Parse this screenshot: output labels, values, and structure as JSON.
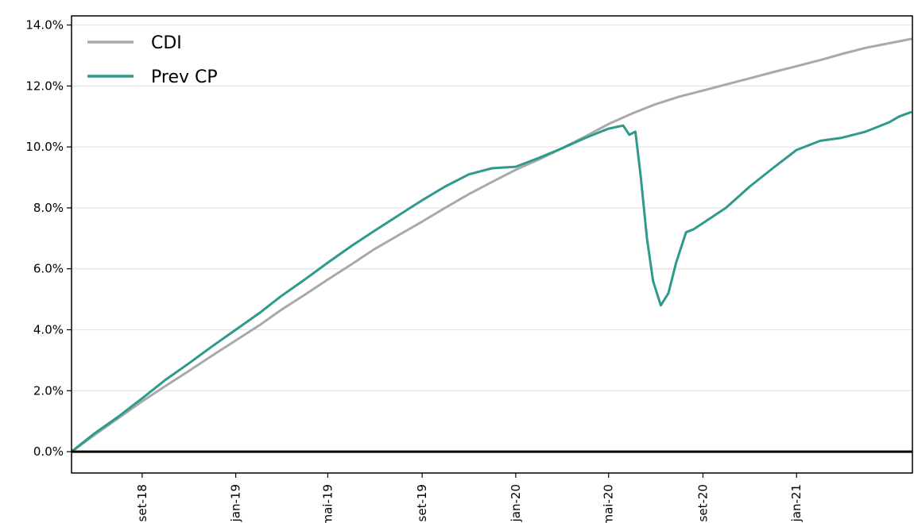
{
  "chart_data": {
    "type": "line",
    "title": "",
    "xlabel": "",
    "ylabel": "",
    "x_ticks": [
      "set-18",
      "jan-19",
      "mai-19",
      "set-19",
      "jan-20",
      "mai-20",
      "set-20",
      "jan-21"
    ],
    "y_ticks": [
      "0.0%",
      "2.0%",
      "4.0%",
      "6.0%",
      "8.0%",
      "10.0%",
      "12.0%",
      "14.0%"
    ],
    "xlim": [
      "2018-06-01",
      "2021-06-01"
    ],
    "ylim": [
      -0.007,
      0.143
    ],
    "grid": "horizontal",
    "legend": "top-left",
    "colors": {
      "CDI": "#a9a9a9",
      "Prev CP": "#2e9a8c",
      "zero_line": "#000000",
      "title": "#1f1f8a"
    },
    "series": [
      {
        "name": "CDI",
        "points": [
          [
            "2018-06-01",
            0.0
          ],
          [
            "2018-07-01",
            0.0055
          ],
          [
            "2018-08-01",
            0.011
          ],
          [
            "2018-09-01",
            0.0165
          ],
          [
            "2018-10-01",
            0.0215
          ],
          [
            "2018-11-01",
            0.0265
          ],
          [
            "2018-12-01",
            0.0315
          ],
          [
            "2019-01-01",
            0.0365
          ],
          [
            "2019-02-01",
            0.0415
          ],
          [
            "2019-03-01",
            0.0465
          ],
          [
            "2019-04-01",
            0.0515
          ],
          [
            "2019-05-01",
            0.0565
          ],
          [
            "2019-06-01",
            0.0615
          ],
          [
            "2019-07-01",
            0.0665
          ],
          [
            "2019-08-01",
            0.071
          ],
          [
            "2019-09-01",
            0.0755
          ],
          [
            "2019-10-01",
            0.08
          ],
          [
            "2019-11-01",
            0.0845
          ],
          [
            "2019-12-01",
            0.0885
          ],
          [
            "2020-01-01",
            0.0925
          ],
          [
            "2020-02-01",
            0.096
          ],
          [
            "2020-03-01",
            0.0995
          ],
          [
            "2020-04-01",
            0.1035
          ],
          [
            "2020-05-01",
            0.1075
          ],
          [
            "2020-06-01",
            0.111
          ],
          [
            "2020-07-01",
            0.114
          ],
          [
            "2020-08-01",
            0.1165
          ],
          [
            "2020-09-01",
            0.1185
          ],
          [
            "2020-10-01",
            0.1205
          ],
          [
            "2020-11-01",
            0.1225
          ],
          [
            "2020-12-01",
            0.1245
          ],
          [
            "2021-01-01",
            0.1265
          ],
          [
            "2021-02-01",
            0.1285
          ],
          [
            "2021-03-01",
            0.1305
          ],
          [
            "2021-04-01",
            0.1325
          ],
          [
            "2021-05-01",
            0.134
          ],
          [
            "2021-06-01",
            0.1355
          ]
        ]
      },
      {
        "name": "Prev CP",
        "points": [
          [
            "2018-06-01",
            0.0
          ],
          [
            "2018-07-01",
            0.006
          ],
          [
            "2018-08-01",
            0.0115
          ],
          [
            "2018-09-01",
            0.0175
          ],
          [
            "2018-10-01",
            0.0235
          ],
          [
            "2018-11-01",
            0.029
          ],
          [
            "2018-12-01",
            0.0345
          ],
          [
            "2019-01-01",
            0.04
          ],
          [
            "2019-02-01",
            0.0455
          ],
          [
            "2019-03-01",
            0.051
          ],
          [
            "2019-04-01",
            0.0565
          ],
          [
            "2019-05-01",
            0.062
          ],
          [
            "2019-06-01",
            0.0675
          ],
          [
            "2019-07-01",
            0.0725
          ],
          [
            "2019-08-01",
            0.0775
          ],
          [
            "2019-09-01",
            0.0825
          ],
          [
            "2019-10-01",
            0.087
          ],
          [
            "2019-11-01",
            0.091
          ],
          [
            "2019-12-01",
            0.093
          ],
          [
            "2020-01-01",
            0.0935
          ],
          [
            "2020-02-01",
            0.0965
          ],
          [
            "2020-03-01",
            0.0995
          ],
          [
            "2020-04-01",
            0.103
          ],
          [
            "2020-05-01",
            0.106
          ],
          [
            "2020-05-20",
            0.107
          ],
          [
            "2020-05-28",
            0.104
          ],
          [
            "2020-06-05",
            0.105
          ],
          [
            "2020-06-12",
            0.09
          ],
          [
            "2020-06-20",
            0.07
          ],
          [
            "2020-06-28",
            0.056
          ],
          [
            "2020-07-08",
            0.048
          ],
          [
            "2020-07-18",
            0.052
          ],
          [
            "2020-07-28",
            0.062
          ],
          [
            "2020-08-10",
            0.072
          ],
          [
            "2020-08-20",
            0.073
          ],
          [
            "2020-09-01",
            0.075
          ],
          [
            "2020-10-01",
            0.08
          ],
          [
            "2020-11-01",
            0.087
          ],
          [
            "2020-12-01",
            0.093
          ],
          [
            "2021-01-01",
            0.099
          ],
          [
            "2021-02-01",
            0.102
          ],
          [
            "2021-03-01",
            0.103
          ],
          [
            "2021-04-01",
            0.105
          ],
          [
            "2021-05-01",
            0.108
          ],
          [
            "2021-05-15",
            0.11
          ],
          [
            "2021-05-31",
            0.1115
          ]
        ]
      }
    ]
  }
}
